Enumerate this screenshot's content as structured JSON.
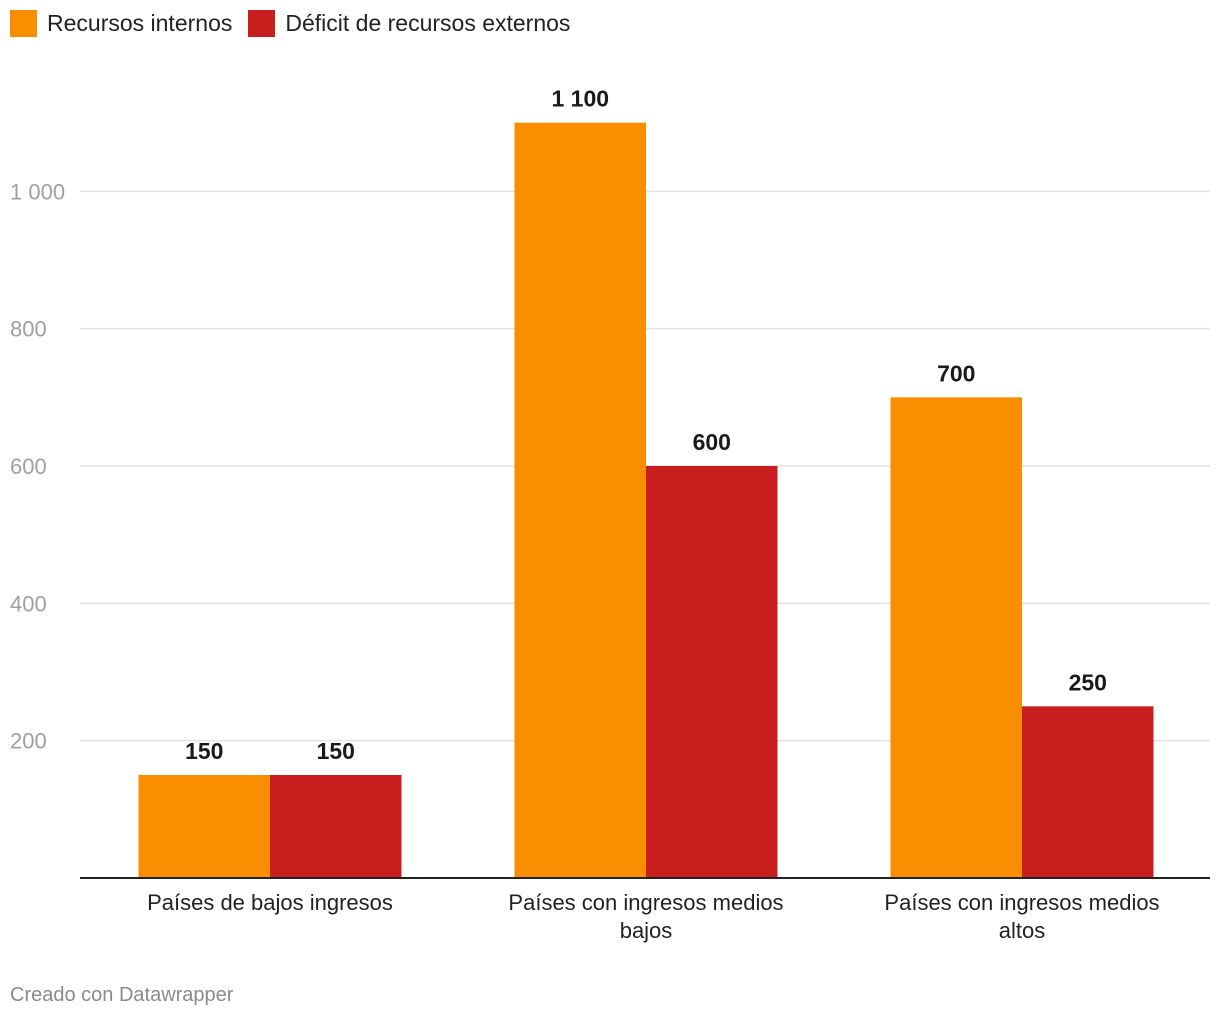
{
  "chart_data": {
    "type": "bar",
    "categories": [
      [
        "Países de bajos ingresos"
      ],
      [
        "Países con ingresos medios",
        "bajos"
      ],
      [
        "Países con ingresos medios",
        "altos"
      ]
    ],
    "series": [
      {
        "name": "Recursos internos",
        "color": "#f98e00",
        "values": [
          150,
          1100,
          700
        ],
        "labels": [
          "150",
          "1 100",
          "700"
        ]
      },
      {
        "name": "Déficit de recursos externos",
        "color": "#c81e1e",
        "values": [
          150,
          600,
          250
        ],
        "labels": [
          "150",
          "600",
          "250"
        ]
      }
    ],
    "ylim": [
      0,
      1200
    ],
    "yticks": [
      200,
      400,
      600,
      800,
      1000
    ],
    "ytick_labels": [
      "200",
      "400",
      "600",
      "800",
      "1 000"
    ],
    "grid": true,
    "legend_position": "top-left"
  },
  "footer": {
    "credit": "Creado con Datawrapper"
  }
}
